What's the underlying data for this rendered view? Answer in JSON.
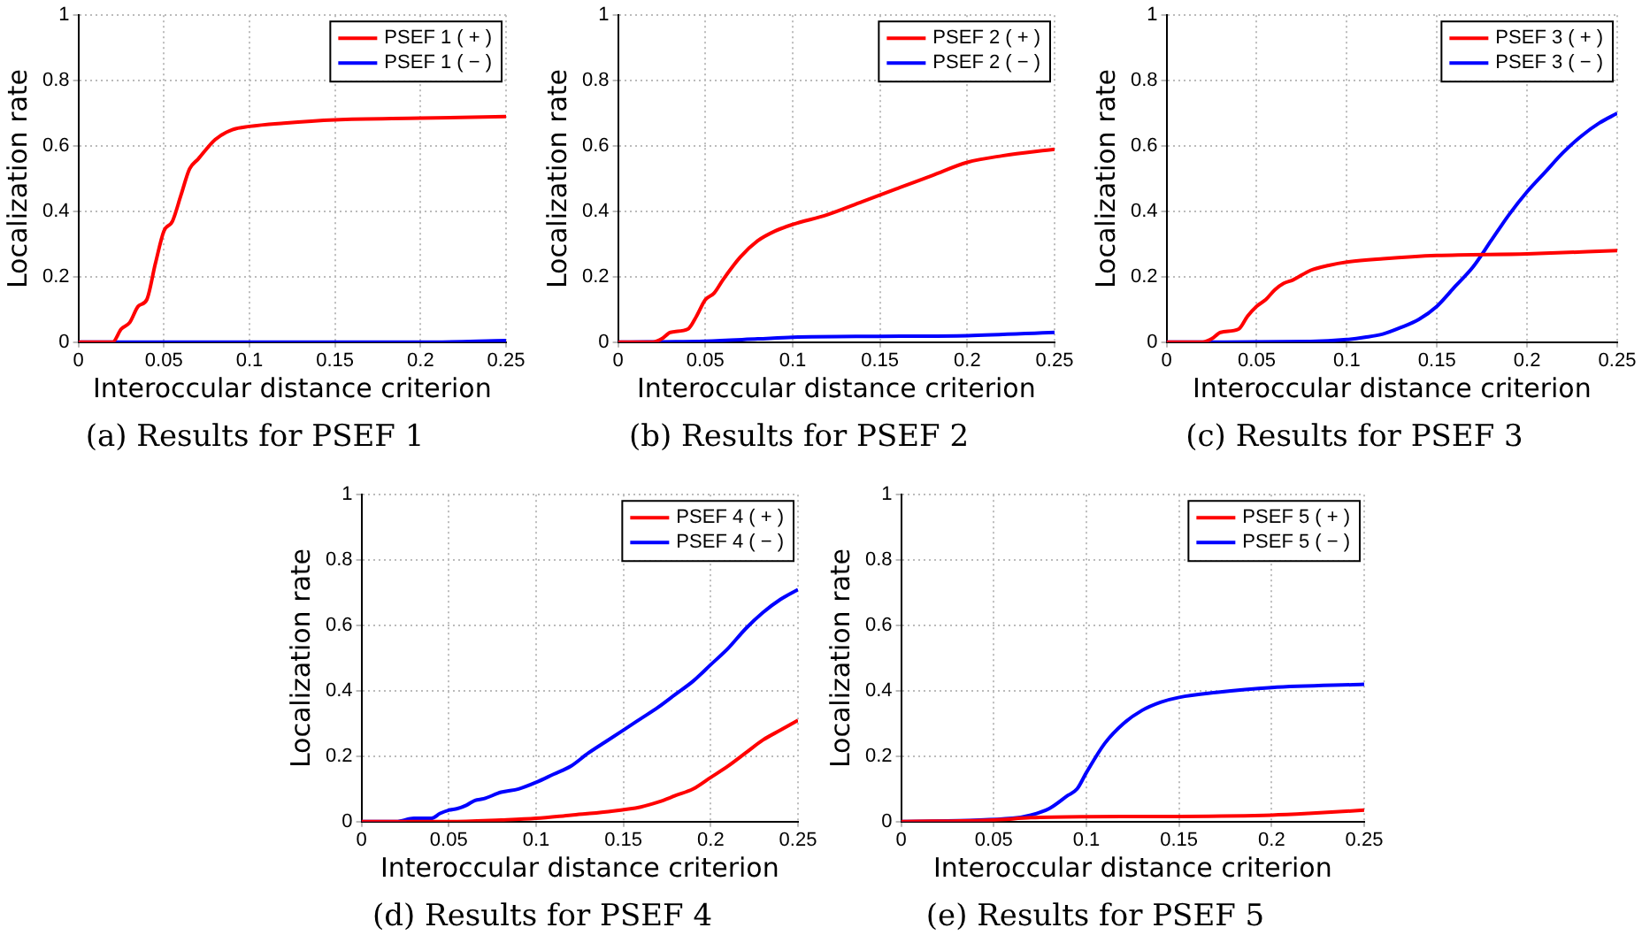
{
  "chart_data": [
    {
      "type": "line",
      "title": "(a) Results for PSEF 1",
      "xlabel": "Interoccular distance criterion",
      "ylabel": "Localization rate",
      "xlim": [
        0,
        0.25
      ],
      "xticks": [
        0,
        0.05,
        0.1,
        0.15,
        0.2,
        0.25
      ],
      "ylim": [
        0,
        1
      ],
      "yticks": [
        0,
        0.2,
        0.4,
        0.6,
        0.8,
        1
      ],
      "grid": true,
      "legend": "top right",
      "marker": "none",
      "series": [
        {
          "name": "PSEF 1 ( + )",
          "color": "#ff0000",
          "x": [
            0,
            0.02,
            0.025,
            0.03,
            0.035,
            0.04,
            0.045,
            0.05,
            0.055,
            0.06,
            0.065,
            0.07,
            0.08,
            0.09,
            0.1,
            0.12,
            0.15,
            0.2,
            0.25
          ],
          "values": [
            0,
            0,
            0.04,
            0.06,
            0.11,
            0.13,
            0.24,
            0.34,
            0.37,
            0.45,
            0.53,
            0.56,
            0.62,
            0.65,
            0.66,
            0.67,
            0.68,
            0.685,
            0.69
          ]
        },
        {
          "name": "PSEF 1 ( − )",
          "color": "#0000ff",
          "x": [
            0,
            0.1,
            0.2,
            0.25
          ],
          "values": [
            0,
            0,
            0,
            0.005
          ]
        }
      ]
    },
    {
      "type": "line",
      "title": "(b) Results for PSEF 2",
      "xlabel": "Interoccular distance criterion",
      "ylabel": "Localization rate",
      "xlim": [
        0,
        0.25
      ],
      "xticks": [
        0,
        0.05,
        0.1,
        0.15,
        0.2,
        0.25
      ],
      "ylim": [
        0,
        1
      ],
      "yticks": [
        0,
        0.2,
        0.4,
        0.6,
        0.8,
        1
      ],
      "grid": true,
      "legend": "top right",
      "marker": "none",
      "series": [
        {
          "name": "PSEF 2 ( + )",
          "color": "#ff0000",
          "x": [
            0,
            0.02,
            0.025,
            0.03,
            0.04,
            0.045,
            0.05,
            0.055,
            0.06,
            0.07,
            0.08,
            0.09,
            0.1,
            0.12,
            0.14,
            0.16,
            0.18,
            0.2,
            0.22,
            0.25
          ],
          "values": [
            0,
            0,
            0.01,
            0.03,
            0.04,
            0.08,
            0.13,
            0.15,
            0.19,
            0.26,
            0.31,
            0.34,
            0.36,
            0.39,
            0.43,
            0.47,
            0.51,
            0.55,
            0.57,
            0.59
          ]
        },
        {
          "name": "PSEF 2 ( − )",
          "color": "#0000ff",
          "x": [
            0,
            0.05,
            0.08,
            0.1,
            0.15,
            0.2,
            0.25
          ],
          "values": [
            0,
            0.003,
            0.01,
            0.015,
            0.018,
            0.02,
            0.03
          ]
        }
      ]
    },
    {
      "type": "line",
      "title": "(c) Results for PSEF 3",
      "xlabel": "Interoccular distance criterion",
      "ylabel": "Localization rate",
      "xlim": [
        0,
        0.25
      ],
      "xticks": [
        0,
        0.05,
        0.1,
        0.15,
        0.2,
        0.25
      ],
      "ylim": [
        0,
        1
      ],
      "yticks": [
        0,
        0.2,
        0.4,
        0.6,
        0.8,
        1
      ],
      "grid": true,
      "legend": "top right",
      "marker": "none",
      "series": [
        {
          "name": "PSEF 3 ( + )",
          "color": "#ff0000",
          "x": [
            0,
            0.02,
            0.025,
            0.03,
            0.04,
            0.045,
            0.05,
            0.055,
            0.06,
            0.065,
            0.07,
            0.08,
            0.09,
            0.1,
            0.12,
            0.15,
            0.2,
            0.25
          ],
          "values": [
            0,
            0,
            0.01,
            0.03,
            0.04,
            0.08,
            0.11,
            0.13,
            0.16,
            0.18,
            0.19,
            0.22,
            0.235,
            0.245,
            0.255,
            0.265,
            0.27,
            0.28
          ]
        },
        {
          "name": "PSEF 3 ( − )",
          "color": "#0000ff",
          "x": [
            0,
            0.08,
            0.1,
            0.11,
            0.12,
            0.13,
            0.14,
            0.15,
            0.16,
            0.17,
            0.18,
            0.19,
            0.2,
            0.21,
            0.22,
            0.23,
            0.24,
            0.25
          ],
          "values": [
            0,
            0.002,
            0.008,
            0.015,
            0.025,
            0.045,
            0.07,
            0.11,
            0.17,
            0.23,
            0.31,
            0.39,
            0.46,
            0.52,
            0.58,
            0.63,
            0.67,
            0.7
          ]
        }
      ]
    },
    {
      "type": "line",
      "title": "(d) Results for PSEF 4",
      "xlabel": "Interoccular distance criterion",
      "ylabel": "Localization rate",
      "xlim": [
        0,
        0.25
      ],
      "xticks": [
        0,
        0.05,
        0.1,
        0.15,
        0.2,
        0.25
      ],
      "ylim": [
        0,
        1
      ],
      "yticks": [
        0,
        0.2,
        0.4,
        0.6,
        0.8,
        1
      ],
      "grid": true,
      "legend": "top right",
      "marker": "none",
      "series": [
        {
          "name": "PSEF 4 ( + )",
          "color": "#ff0000",
          "x": [
            0,
            0.05,
            0.08,
            0.1,
            0.12,
            0.14,
            0.16,
            0.17,
            0.18,
            0.19,
            0.2,
            0.21,
            0.22,
            0.23,
            0.24,
            0.25
          ],
          "values": [
            0,
            0,
            0.005,
            0.01,
            0.02,
            0.03,
            0.045,
            0.06,
            0.08,
            0.1,
            0.135,
            0.17,
            0.21,
            0.25,
            0.28,
            0.31
          ]
        },
        {
          "name": "PSEF 4 ( − )",
          "color": "#0000ff",
          "x": [
            0,
            0.02,
            0.03,
            0.04,
            0.045,
            0.05,
            0.055,
            0.06,
            0.065,
            0.07,
            0.08,
            0.09,
            0.1,
            0.11,
            0.12,
            0.13,
            0.14,
            0.15,
            0.16,
            0.17,
            0.18,
            0.19,
            0.2,
            0.21,
            0.22,
            0.23,
            0.24,
            0.25
          ],
          "values": [
            0,
            0,
            0.01,
            0.01,
            0.025,
            0.035,
            0.04,
            0.05,
            0.065,
            0.07,
            0.09,
            0.1,
            0.12,
            0.145,
            0.17,
            0.21,
            0.245,
            0.28,
            0.315,
            0.35,
            0.39,
            0.43,
            0.48,
            0.53,
            0.59,
            0.64,
            0.68,
            0.71
          ]
        }
      ]
    },
    {
      "type": "line",
      "title": "(e) Results for PSEF 5",
      "xlabel": "Interoccular distance criterion",
      "ylabel": "Localization rate",
      "xlim": [
        0,
        0.25
      ],
      "xticks": [
        0,
        0.05,
        0.1,
        0.15,
        0.2,
        0.25
      ],
      "ylim": [
        0,
        1
      ],
      "yticks": [
        0,
        0.2,
        0.4,
        0.6,
        0.8,
        1
      ],
      "grid": true,
      "legend": "top right",
      "marker": "none",
      "series": [
        {
          "name": "PSEF 5 ( + )",
          "color": "#ff0000",
          "x": [
            0,
            0.05,
            0.07,
            0.1,
            0.15,
            0.2,
            0.22,
            0.25
          ],
          "values": [
            0,
            0.005,
            0.012,
            0.015,
            0.016,
            0.02,
            0.025,
            0.035
          ]
        },
        {
          "name": "PSEF 5 ( − )",
          "color": "#0000ff",
          "x": [
            0,
            0.06,
            0.07,
            0.08,
            0.09,
            0.095,
            0.1,
            0.11,
            0.12,
            0.13,
            0.14,
            0.15,
            0.17,
            0.2,
            0.25
          ],
          "values": [
            0,
            0.01,
            0.02,
            0.04,
            0.08,
            0.1,
            0.15,
            0.24,
            0.3,
            0.34,
            0.365,
            0.38,
            0.395,
            0.41,
            0.42
          ]
        }
      ]
    }
  ]
}
